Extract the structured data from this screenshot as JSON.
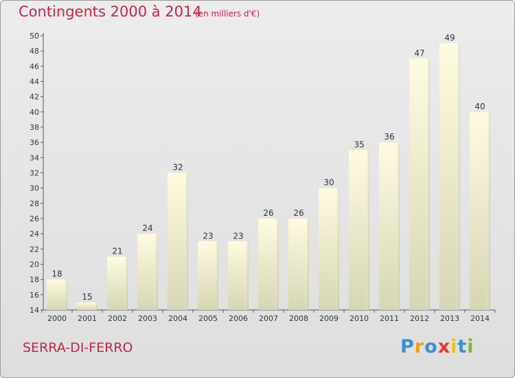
{
  "header": {
    "title": "Contingents 2000 à 2014",
    "unit": "(en milliers d'€)"
  },
  "footer": {
    "commune": "SERRA-DI-FERRO",
    "logo_text": "Proxiti"
  },
  "colors": {
    "title": "#c0264a",
    "bar_top": "#fffbe0",
    "bar_bottom": "#d6d6b4",
    "background": "#e6e6e6"
  },
  "chart_data": {
    "type": "bar",
    "title": "Contingents 2000 à 2014",
    "subtitle": "(en milliers d'€)",
    "categories": [
      "2000",
      "2001",
      "2002",
      "2003",
      "2004",
      "2005",
      "2006",
      "2007",
      "2008",
      "2009",
      "2010",
      "2011",
      "2012",
      "2013",
      "2014"
    ],
    "values": [
      18,
      15,
      21,
      24,
      32,
      23,
      23,
      26,
      26,
      30,
      35,
      36,
      47,
      49,
      40
    ],
    "ylim": [
      14,
      50
    ],
    "yticks": [
      14,
      16,
      18,
      20,
      22,
      24,
      26,
      28,
      30,
      32,
      34,
      36,
      38,
      40,
      42,
      44,
      46,
      48,
      50
    ],
    "grid": false,
    "legend": "none"
  }
}
